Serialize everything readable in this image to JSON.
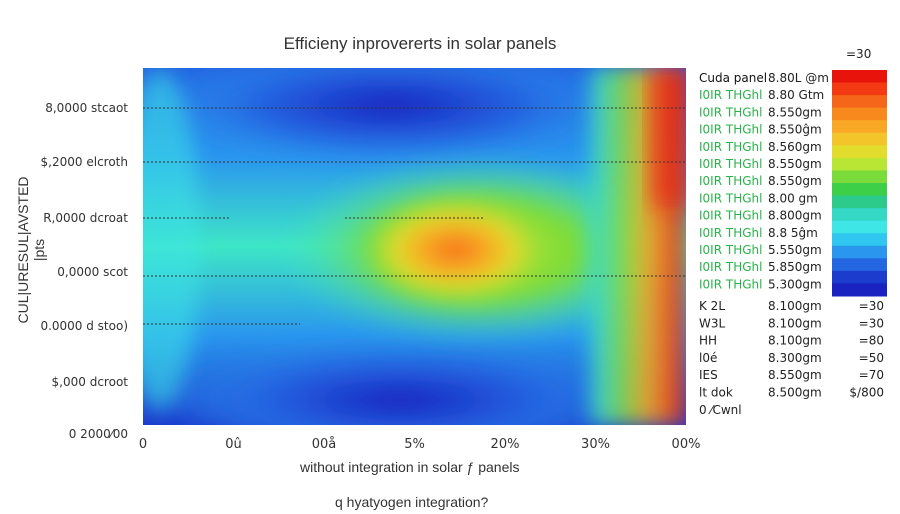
{
  "chart_data": {
    "type": "heatmap",
    "title": "Efficieny inprovererts in solar panels",
    "xlabel": "without integration in solar ƒ panels",
    "xlabel2": "q hyatyogen integration?",
    "ylabel": "CUL|URESUL|AVSTED\\n|pts",
    "x_ticks": [
      "0",
      "0û",
      "00å",
      "5%",
      "20%",
      "30%",
      "00%"
    ],
    "y_ticks": [
      "8,0000 stcaot",
      "$,2000 elcroth",
      "R,0000 dcroat",
      "0,0000 scot",
      "0.0000 d stoo)",
      "$,000 dcroot",
      "0 2000⁄00"
    ],
    "colorbar_top": "=30",
    "colorbar_colors": [
      "#e8140c",
      "#f33a12",
      "#f6661a",
      "#f88a1d",
      "#f8a824",
      "#f3c52a",
      "#e2dd2c",
      "#b9e534",
      "#7bdb3a",
      "#3dcf48",
      "#2cca8b",
      "#34d8c5",
      "#3ee6e6",
      "#2fc6f0",
      "#2a96ee",
      "#2466e2",
      "#1c3ccd",
      "#1a22c0"
    ],
    "legend_top": [
      {
        "label": "Cuda panel",
        "value": "8.80L @m",
        "color": "#111111"
      },
      {
        "label": "I0IR THGhl",
        "value": "8.80 Gtm",
        "color": "#2bb24c"
      },
      {
        "label": "I0IR THGhl",
        "value": "8.550gm",
        "color": "#2bb24c"
      },
      {
        "label": "I0IR THGhl",
        "value": "8.550ĝm",
        "color": "#2bb24c"
      },
      {
        "label": "I0IR THGhl",
        "value": "8.560gm",
        "color": "#2bb24c"
      },
      {
        "label": "I0IR THGhl",
        "value": "8.550gm",
        "color": "#2bb24c"
      },
      {
        "label": "I0IR THGhl",
        "value": "8.550gm",
        "color": "#2bb24c"
      },
      {
        "label": "I0IR THGhl",
        "value": "8.00 gm",
        "color": "#2bb24c"
      },
      {
        "label": "I0IR THGhl",
        "value": "8.800gm",
        "color": "#2bb24c"
      },
      {
        "label": "I0IR THGhl",
        "value": "8.8 5ĝm",
        "color": "#2bb24c"
      },
      {
        "label": "I0IR THGhl",
        "value": "5.550gm",
        "color": "#2bb24c"
      },
      {
        "label": "I0IR THGhl",
        "value": "5.850gm",
        "color": "#2bb24c"
      },
      {
        "label": "I0IR THGhl",
        "value": "5.300gm",
        "color": "#2bb24c"
      }
    ],
    "legend_bottom": [
      {
        "label": "K 2L",
        "value": "8.100gm",
        "scale": "=30"
      },
      {
        "label": "W3L",
        "value": "8.100gm",
        "scale": "=30"
      },
      {
        "label": "HH",
        "value": "8.100gm",
        "scale": "=80"
      },
      {
        "label": "l0é",
        "value": "8.300gm",
        "scale": "=50"
      },
      {
        "label": "IES",
        "value": "8.550gm",
        "scale": "=70"
      },
      {
        "label": "lt dok",
        "value": "8.500gm",
        "scale": "$/800"
      },
      {
        "label": "0 ⁄Cwnl",
        "value": "",
        "scale": ""
      }
    ],
    "dotted_lines_pct": [
      0.12,
      0.29,
      0.72
    ]
  }
}
